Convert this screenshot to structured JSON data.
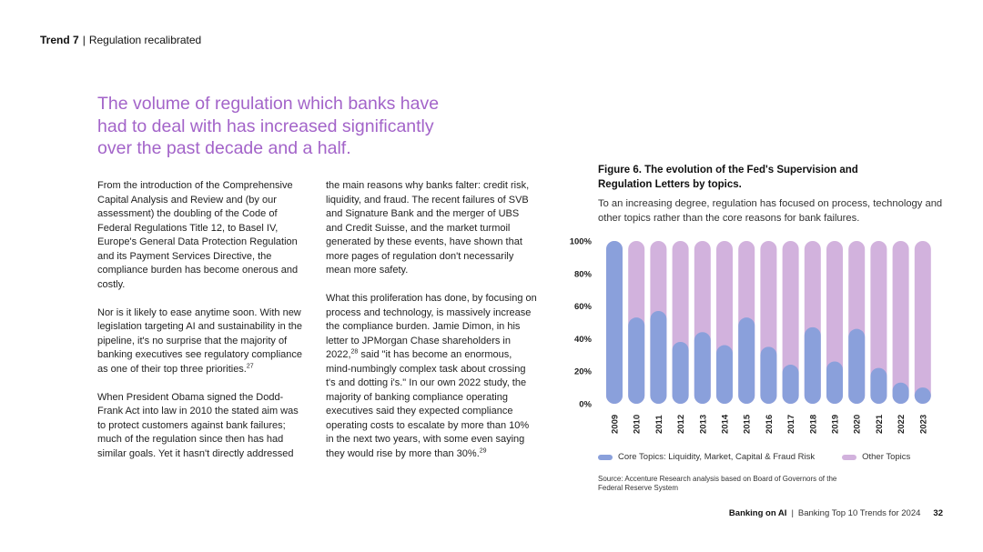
{
  "header": {
    "trend": "Trend 7",
    "separator": "|",
    "section": "Regulation recalibrated"
  },
  "headline": "The volume of regulation which banks have had to deal with has increased significantly over the past decade and a half.",
  "body": {
    "col1": {
      "p1": "From the introduction of the Comprehensive Capital Analysis and Review and (by our assessment) the doubling of the Code of Federal Regulations Title 12, to Basel IV, Europe's General Data Protection Regulation and its Payment Services Directive, the compliance burden has become onerous and costly.",
      "p2": "Nor is it likely to ease anytime soon. With new legislation targeting AI and sustainability in the pipeline, it's no surprise that the majority of banking executives see regulatory compliance as one of their top three priorities.",
      "p2_ref": "27",
      "p3": "When President Obama signed the Dodd-Frank Act into law in 2010 the stated aim was to protect customers against bank failures; much of the regulation since then has had similar goals. Yet it hasn't directly addressed"
    },
    "col2": {
      "p1": "the main reasons why banks falter: credit risk, liquidity, and fraud. The recent failures of SVB and Signature Bank and the merger of UBS and Credit Suisse, and the market turmoil generated by these events, have shown that more pages of regulation don't necessarily mean more safety.",
      "p2a": "What this proliferation has done, by focusing on process and technology, is massively increase the compliance burden. Jamie Dimon, in his letter to JPMorgan Chase shareholders in 2022,",
      "p2_ref1": "28",
      "p2b": " said \"it has become an enormous, mind-numbingly complex task about crossing t's and dotting i's.\" In our own 2022 study, the majority of banking compliance operating executives said they expected compliance operating costs to escalate by more than 10% in the next two years, with some even saying they would rise by more than 30%.",
      "p2_ref2": "29"
    }
  },
  "figure": {
    "title": "Figure 6. The evolution of the Fed's Supervision and Regulation Letters by topics.",
    "subtitle": "To an increasing degree, regulation has focused on process, technology and other topics rather than the core reasons for bank failures.",
    "source": "Source: Accenture Research analysis based on Board of Governors of the Federal Reserve System"
  },
  "legend": {
    "core": "Core Topics: Liquidity, Market, Capital & Fraud Risk",
    "other": "Other Topics"
  },
  "colors": {
    "core": "#8aa0db",
    "other": "#d2b2dd",
    "headline": "#a364c9"
  },
  "chart_data": {
    "type": "bar",
    "stacked": true,
    "categories": [
      "2009",
      "2010",
      "2011",
      "2012",
      "2013",
      "2014",
      "2015",
      "2016",
      "2017",
      "2018",
      "2019",
      "2020",
      "2021",
      "2022",
      "2023"
    ],
    "series": [
      {
        "name": "Core Topics: Liquidity, Market, Capital & Fraud Risk",
        "values": [
          100,
          53,
          57,
          38,
          44,
          36,
          53,
          35,
          24,
          47,
          26,
          46,
          22,
          13,
          10
        ]
      },
      {
        "name": "Other Topics",
        "values": [
          0,
          47,
          43,
          62,
          56,
          64,
          47,
          65,
          76,
          53,
          74,
          54,
          78,
          87,
          90
        ]
      }
    ],
    "yticks": [
      "0%",
      "20%",
      "40%",
      "60%",
      "80%",
      "100%"
    ],
    "ylim": [
      0,
      100
    ]
  },
  "footer": {
    "brand": "Banking on AI",
    "separator": "|",
    "title": "Banking Top 10 Trends for 2024",
    "page": "32"
  }
}
